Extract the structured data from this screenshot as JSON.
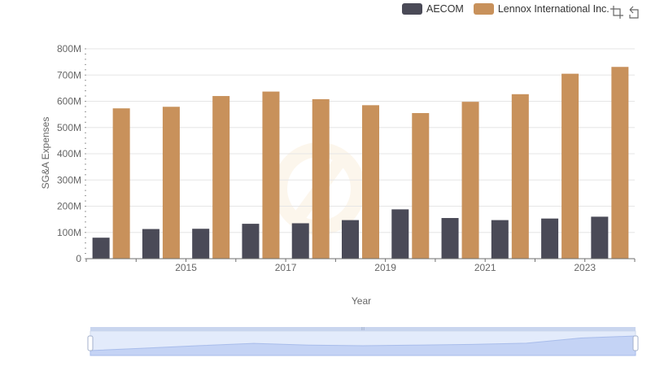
{
  "chart_data": {
    "type": "bar",
    "x": [
      2014,
      2015,
      2016,
      2017,
      2018,
      2019,
      2020,
      2021,
      2022,
      2023,
      2024
    ],
    "x_tick_labels": [
      "2015",
      "2017",
      "2019",
      "2021",
      "2023"
    ],
    "y_tick_labels": [
      "0",
      "100M",
      "200M",
      "300M",
      "400M",
      "500M",
      "600M",
      "700M",
      "800M"
    ],
    "ylim": [
      0,
      800000000
    ],
    "xlabel": "Year",
    "ylabel": "SG&A Expenses",
    "legend_position": "top-right",
    "grid": true,
    "series": [
      {
        "name": "AECOM",
        "color": "#4a4a57",
        "values": [
          80000000,
          113000000,
          114000000,
          133000000,
          135000000,
          147000000,
          188000000,
          155000000,
          147000000,
          153000000,
          160000000
        ]
      },
      {
        "name": "Lennox International Inc.",
        "color": "#c8915b",
        "values": [
          573000000,
          579000000,
          620000000,
          637000000,
          608000000,
          585000000,
          555000000,
          598000000,
          627000000,
          705000000,
          731000000
        ]
      }
    ]
  },
  "toolbar": {
    "restore_icon": "restore-icon",
    "zoom_icon": "zoom-icon"
  },
  "datazoom": {
    "range_start_percent": 0,
    "range_end_percent": 100,
    "handle_label": "III"
  }
}
